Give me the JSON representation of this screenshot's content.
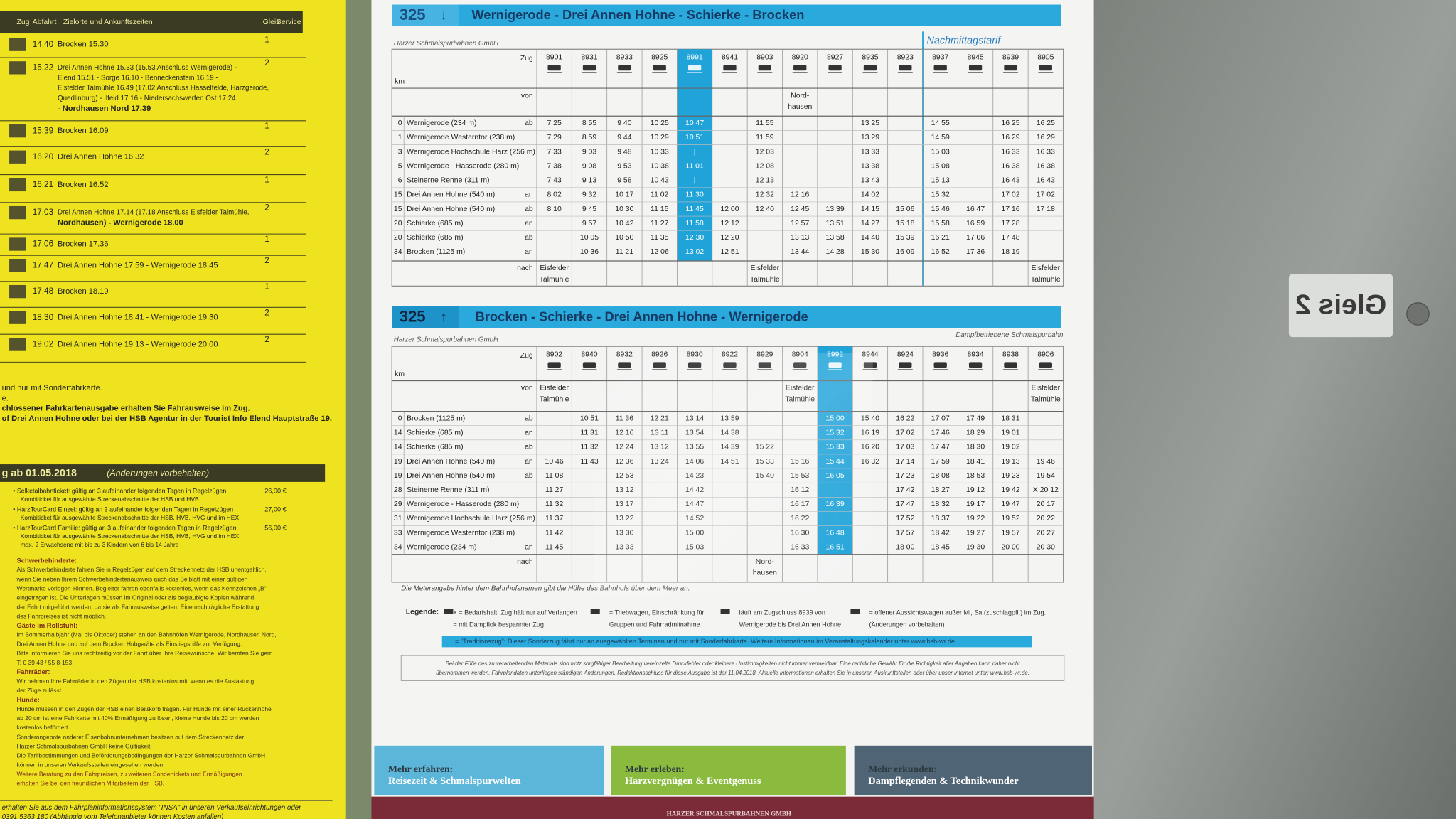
{
  "left_sheet": {
    "header": [
      "Zug",
      "Abfahrt",
      "Zielorte und Ankunftszeiten",
      "Gleis",
      "Service"
    ],
    "departures": [
      {
        "time": "14.40",
        "lines": [
          "Brocken 15.30"
        ],
        "platform": "1"
      },
      {
        "time": "15.22",
        "lines": [
          "Drei Annen Hohne 15.33 (15.53 Anschluss Wernigerode) -",
          "Elend 15.51 - Sorge 16.10 - Benneckenstein 16.19 -",
          "Eisfelder Talmühle 16.49 (17.02 Anschluss Hasselfelde, Harzgerode,",
          "Quedlinburg) - Ilfeld 17.16 - Niedersachswerfen Ost 17.24",
          "- Nordhausen Nord 17.39"
        ],
        "platform": "2"
      },
      {
        "time": "15.39",
        "lines": [
          "Brocken 16.09"
        ],
        "platform": "1"
      },
      {
        "time": "16.20",
        "lines": [
          "Drei Annen Hohne 16.32"
        ],
        "platform": "2"
      },
      {
        "time": "16.21",
        "lines": [
          "Brocken 16.52"
        ],
        "platform": "1"
      },
      {
        "time": "17.03",
        "lines": [
          "Drei Annen Hohne 17.14 (17.18 Anschluss Eisfelder Talmühle,",
          "Nordhausen) - Wernigerode 18.00"
        ],
        "platform": "2"
      },
      {
        "time": "17.06",
        "lines": [
          "Brocken 17.36"
        ],
        "platform": "1"
      },
      {
        "time": "17.47",
        "lines": [
          "Drei Annen Hohne 17.59 - Wernigerode 18.45"
        ],
        "platform": "2"
      },
      {
        "time": "17.48",
        "lines": [
          "Brocken 18.19"
        ],
        "platform": "1"
      },
      {
        "time": "18.30",
        "lines": [
          "Drei Annen Hohne 18.41 - Wernigerode 19.30"
        ],
        "platform": "2"
      },
      {
        "time": "19.02",
        "lines": [
          "Drei Annen Hohne 19.13 - Wernigerode 20.00"
        ],
        "platform": "2"
      }
    ],
    "notes": [
      "und nur mit Sonderfahrkarte.",
      "e.",
      "chlossener Fahrkartenausgabe erhalten Sie Fahrausweise im Zug.",
      "of Drei Annen Hohne oder bei der HSB Agentur in der Tourist Info Elend Hauptstraße 19."
    ],
    "tariff_heading": "g ab 01.05.2018",
    "tariff_note": "(Änderungen vorbehalten)",
    "tickets": [
      {
        "name": "• Selketalbahnticket: gültig an 3 aufeinander folgenden Tagen in Regelzügen",
        "price": "26,00 €",
        "details": [
          "Kombiticket für ausgewählte Streckenabschnitte der HSB und HVB"
        ]
      },
      {
        "name": "• HarzTourCard Einzel: gültig an 3 aufeinander folgenden Tagen in Regelzügen",
        "price": "27,00 €",
        "details": [
          "Kombiticket für ausgewählte Streckenabschnitte der HSB, HVB, HVG und im HEX"
        ]
      },
      {
        "name": "• HarzTourCard Familie: gültig an 3 aufeinander folgenden Tagen in Regelzügen",
        "price": "56,00 €",
        "details": [
          "Kombiticket für ausgewählte Streckenabschnitte der HSB, HVB, HVG und im HEX",
          "max. 2 Erwachsene mit bis zu 3 Kindern von 6 bis 14 Jahre"
        ]
      }
    ],
    "info": [
      "Schwerbehinderte:",
      "Als Schwerbehinderte fahren Sie in Regelzügen auf dem Streckennetz der HSB unentgeltlich,",
      "wenn Sie neben Ihrem Schwerbehindertenausweis auch das Beiblatt mit einer gültigen",
      "Wertmarke vorlegen können. Begleiter fahren ebenfalls kostenlos, wenn das Kennzeichen „B“",
      "eingetragen ist. Die Unterlagen müssen im Original oder als beglaubigte Kopien während",
      "der Fahrt mitgeführt werden, da sie als Fahrausweise gelten. Eine nachträgliche Erstattung",
      "des Fahrpreises ist nicht möglich.",
      "Gäste im Rollstuhl:",
      "Im Sommerhalbjahr (Mai bis Oktober) stehen an den Bahnhöfen Wernigerode, Nordhausen Nord,",
      "Drei Annen Hohne und auf dem Brocken Hubgeräte als Einstiegshilfe zur Verfügung.",
      "Bitte informieren Sie uns rechtzeitig vor der Fahrt über Ihre Reisewünsche. Wir beraten Sie gern",
      "T: 0 39 43 / 55 8-153.",
      "Fahrräder:",
      "Wir nehmen Ihre Fahrräder in den Zügen der HSB kostenlos mit, wenn es die Auslastung",
      "der Züge zulässt.",
      "Hunde:",
      "Hunde müssen in den Zügen der HSB einen Beißkorb tragen. Für Hunde mit einer Rückenhöhe",
      "ab 20 cm ist eine Fahrkarte mit 40% Ermäßigung zu lösen, kleine Hunde bis 20 cm werden",
      "kostenlos befördert.",
      "Sonderangebote anderer Eisenbahnunternehmen besitzen auf dem Streckennetz der",
      "Harzer Schmalspurbahnen GmbH keine Gültigkeit.",
      "Die Tarifbestimmungen und Beförderungsbedingungen der Harzer Schmalspurbahnen GmbH",
      "können in unseren Verkaufsstellen eingesehen werden.",
      "Weitere Beratung zu den Fahrpreisen, zu weiteren Sondertickets und Ermäßigungen",
      "erhalten Sie bei den freundlichen Mitarbeitern der HSB."
    ],
    "bottom": [
      "erhalten Sie aus dem Fahrplaninformationssystem \"INSA\" in unseren Verkaufseinrichtungen oder",
      "0391 5363 180 (Abhängig vom Telefonanbieter können Kosten anfallen)"
    ]
  },
  "timetables": [
    {
      "number": "325",
      "arrow": "↓",
      "route": "Wernigerode - Drei Annen Hohne - Schierke - Brocken",
      "operator": "Harzer Schmalspurbahnen GmbH",
      "note": "Nachmittagstarif",
      "labels": {
        "train": "Zug",
        "km": "km",
        "from": "von",
        "to": "nach"
      },
      "trains": [
        "8901",
        "8931",
        "8933",
        "8925",
        "8991",
        "8941",
        "8903",
        "8920",
        "8927",
        "8935",
        "8923",
        "8937",
        "8945",
        "8939",
        "8905"
      ],
      "from": [
        null,
        null,
        null,
        null,
        null,
        null,
        null,
        [
          "Nord-",
          "hausen"
        ],
        null,
        null,
        null,
        null,
        null,
        null,
        null
      ],
      "rows": [
        {
          "km": "0",
          "station": "Wernigerode (234 m)",
          "dir": "ab",
          "times": [
            "7 25",
            "8 55",
            "9 40",
            "10 25",
            "10 47",
            null,
            "11 55",
            null,
            null,
            "13 25",
            null,
            "14 55",
            null,
            "16 25",
            "16 25"
          ]
        },
        {
          "km": "1",
          "station": "Wernigerode Westerntor (238 m)",
          "dir": null,
          "times": [
            "7 29",
            "8 59",
            "9 44",
            "10 29",
            "10 51",
            null,
            "11 59",
            null,
            null,
            "13 29",
            null,
            "14 59",
            null,
            "16 29",
            "16 29"
          ]
        },
        {
          "km": "3",
          "station": "Wernigerode Hochschule Harz (256 m)",
          "dir": null,
          "times": [
            "7 33",
            "9 03",
            "9 48",
            "10 33",
            "|",
            null,
            "12 03",
            null,
            null,
            "13 33",
            null,
            "15 03",
            null,
            "16 33",
            "16 33"
          ]
        },
        {
          "km": "5",
          "station": "Wernigerode - Hasserode (280 m)",
          "dir": null,
          "times": [
            "7 38",
            "9 08",
            "9 53",
            "10 38",
            "11 01",
            null,
            "12 08",
            null,
            null,
            "13 38",
            null,
            "15 08",
            null,
            "16 38",
            "16 38"
          ]
        },
        {
          "km": "6",
          "station": "Steinerne Renne (311 m)",
          "dir": null,
          "times": [
            "7 43",
            "9 13",
            "9 58",
            "10 43",
            "|",
            null,
            "12 13",
            null,
            null,
            "13 43",
            null,
            "15 13",
            null,
            "16 43",
            "16 43"
          ]
        },
        {
          "km": "15",
          "station": "Drei Annen Hohne (540 m)",
          "dir": "an",
          "times": [
            "8 02",
            "9 32",
            "10 17",
            "11 02",
            "11 30",
            null,
            "12 32",
            "12 16",
            null,
            "14 02",
            null,
            "15 32",
            null,
            "17 02",
            "17 02"
          ]
        },
        {
          "km": "15",
          "station": "Drei Annen Hohne (540 m)",
          "dir": "ab",
          "times": [
            "8 10",
            "9 45",
            "10 30",
            "11 15",
            "11 45",
            "12 00",
            "12 40",
            "12 45",
            "13 39",
            "14 15",
            "15 06",
            "15 46",
            "16 47",
            "17 16",
            "17 18"
          ]
        },
        {
          "km": "20",
          "station": "Schierke (685 m)",
          "dir": "an",
          "times": [
            null,
            "9 57",
            "10 42",
            "11 27",
            "11 58",
            "12 12",
            null,
            "12 57",
            "13 51",
            "14 27",
            "15 18",
            "15 58",
            "16 59",
            "17 28",
            null
          ]
        },
        {
          "km": "20",
          "station": "Schierke (685 m)",
          "dir": "ab",
          "times": [
            null,
            "10 05",
            "10 50",
            "11 35",
            "12 30",
            "12 20",
            null,
            "13 13",
            "13 58",
            "14 40",
            "15 39",
            "16 21",
            "17 06",
            "17 48",
            null
          ]
        },
        {
          "km": "34",
          "station": "Brocken (1125 m)",
          "dir": "an",
          "times": [
            null,
            "10 36",
            "11 21",
            "12 06",
            "13 02",
            "12 51",
            null,
            "13 44",
            "14 28",
            "15 30",
            "16 09",
            "16 52",
            "17 36",
            "18 19",
            null
          ]
        }
      ],
      "to": [
        [
          "Eisfelder",
          "Talmühle"
        ],
        null,
        null,
        null,
        null,
        null,
        [
          "Eisfelder",
          "Talmühle"
        ],
        null,
        null,
        null,
        null,
        null,
        null,
        null,
        [
          "Eisfelder",
          "Talmühle"
        ]
      ]
    },
    {
      "number": "325",
      "arrow": "↑",
      "route": "Brocken - Schierke - Drei Annen Hohne - Wernigerode",
      "operator": "Harzer Schmalspurbahnen GmbH",
      "note": "Dampfbetriebene Schmalspurbahn",
      "labels": {
        "train": "Zug",
        "km": "km",
        "from": "von",
        "to": "nach"
      },
      "trains": [
        "8902",
        "8940",
        "8932",
        "8926",
        "8930",
        "8922",
        "8929",
        "8904",
        "8992",
        "8944",
        "8924",
        "8936",
        "8934",
        "8938",
        "8906"
      ],
      "from": [
        [
          "Eisfelder",
          "Talmühle"
        ],
        null,
        null,
        null,
        null,
        null,
        null,
        [
          "Eisfelder",
          "Talmühle"
        ],
        null,
        null,
        null,
        null,
        null,
        null,
        [
          "Eisfelder",
          "Talmühle"
        ]
      ],
      "rows": [
        {
          "km": "0",
          "station": "Brocken (1125 m)",
          "dir": "ab",
          "times": [
            null,
            "10 51",
            "11 36",
            "12 21",
            "13 14",
            "13 59",
            null,
            null,
            "15 00",
            "15 40",
            "16 22",
            "17 07",
            "17 49",
            "18 31",
            null
          ]
        },
        {
          "km": "14",
          "station": "Schierke (685 m)",
          "dir": "an",
          "times": [
            null,
            "11 31",
            "12 16",
            "13 11",
            "13 54",
            "14 38",
            null,
            null,
            "15 32",
            "16 19",
            "17 02",
            "17 46",
            "18 29",
            "19 01",
            null
          ]
        },
        {
          "km": "14",
          "station": "Schierke (685 m)",
          "dir": "ab",
          "times": [
            null,
            "11 32",
            "12 24",
            "13 12",
            "13 55",
            "14 39",
            "15 22",
            null,
            "15 33",
            "16 20",
            "17 03",
            "17 47",
            "18 30",
            "19 02",
            null
          ]
        },
        {
          "km": "19",
          "station": "Drei Annen Hohne (540 m)",
          "dir": "an",
          "times": [
            "10 46",
            "11 43",
            "12 36",
            "13 24",
            "14 06",
            "14 51",
            "15 33",
            "15 16",
            "15 44",
            "16 32",
            "17 14",
            "17 59",
            "18 41",
            "19 13",
            "19 46"
          ]
        },
        {
          "km": "19",
          "station": "Drei Annen Hohne (540 m)",
          "dir": "ab",
          "times": [
            "11 08",
            null,
            "12 53",
            null,
            "14 23",
            null,
            "15 40",
            "15 53",
            "16 05",
            null,
            "17 23",
            "18 08",
            "18 53",
            "19 23",
            "19 54"
          ]
        },
        {
          "km": "28",
          "station": "Steinerne Renne (311 m)",
          "dir": null,
          "times": [
            "11 27",
            null,
            "13 12",
            null,
            "14 42",
            null,
            null,
            "16 12",
            "|",
            null,
            "17 42",
            "18 27",
            "19 12",
            "19 42",
            "X 20 12"
          ]
        },
        {
          "km": "29",
          "station": "Wernigerode - Hasserode (280 m)",
          "dir": null,
          "times": [
            "11 32",
            null,
            "13 17",
            null,
            "14 47",
            null,
            null,
            "16 17",
            "16 39",
            null,
            "17 47",
            "18 32",
            "19 17",
            "19 47",
            "20 17"
          ]
        },
        {
          "km": "31",
          "station": "Wernigerode Hochschule Harz (256 m)",
          "dir": null,
          "times": [
            "11 37",
            null,
            "13 22",
            null,
            "14 52",
            null,
            null,
            "16 22",
            "|",
            null,
            "17 52",
            "18 37",
            "19 22",
            "19 52",
            "20 22"
          ]
        },
        {
          "km": "33",
          "station": "Wernigerode Westerntor (238 m)",
          "dir": null,
          "times": [
            "11 42",
            null,
            "13 30",
            null,
            "15 00",
            null,
            null,
            "16 30",
            "16 48",
            null,
            "17 57",
            "18 42",
            "19 27",
            "19 57",
            "20 27"
          ]
        },
        {
          "km": "34",
          "station": "Wernigerode (234 m)",
          "dir": "an",
          "times": [
            "11 45",
            null,
            "13 33",
            null,
            "15 03",
            null,
            null,
            "16 33",
            "16 51",
            null,
            "18 00",
            "18 45",
            "19 30",
            "20 00",
            "20 30"
          ]
        }
      ],
      "to": [
        null,
        null,
        null,
        null,
        null,
        null,
        [
          "Nord-",
          "hausen"
        ],
        null,
        null,
        null,
        null,
        null,
        null,
        null,
        null
      ]
    }
  ],
  "footnote": "Die Meterangabe hinter dem Bahnhofsnamen gibt die Höhe des Bahnhofs über dem Meer an.",
  "legend": {
    "title": "Legende:",
    "items": [
      [
        "× = Bedarfshalt, Zug hält nur auf Verlangen",
        "= mit Dampflok bespannter Zug"
      ],
      [
        "= Triebwagen, Einschränkung für",
        "Gruppen und Fahrradmitnahme"
      ],
      [
        "läuft am Zugschluss 8939 von",
        "Wernigerode bis Drei Annen Hohne"
      ],
      [
        "= offener Aussichtswagen außer Mi, Sa (zuschlagpfl.) im Zug.",
        "(Änderungen vorbehalten)"
      ]
    ],
    "special": "= \"Traditionszug\": Dieser Sonderzug fährt nur an ausgewählten Terminen und nur mit Sonderfahrkarte. Weitere Informationen im Veranstaltungskalender unter www.hsb-wr.de."
  },
  "disclaimer": [
    "Bei der Fülle des zu verarbeitenden Materials sind trotz sorgfältiger Bearbeitung vereinzelte Druckfehler oder kleinere Unstimmigkeiten nicht immer vermeidbar. Eine rechtliche Gewähr für die Richtigkeit aller Angaben kann daher nicht",
    "übernommen werden. Fahrplandaten unterliegen ständigen Änderungen. Redaktionsschluss für diese Ausgabe ist der 11.04.2018. Aktuelle Informationen erhalten Sie in unseren Auskunftstellen oder über unser Internet unter: www.hsb-wr.de."
  ],
  "banners": [
    {
      "label": "Mehr erfahren:",
      "text": "Reisezeit & Schmalspurwelten"
    },
    {
      "label": "Mehr erleben:",
      "text": "Harzvergnügen & Eventgenuss"
    },
    {
      "label": "Mehr erkunden:",
      "text": "Dampflegenden & Technikwunder"
    }
  ],
  "footer": "HARZER SCHMALSPURBAHNEN GMBH",
  "sign": "Gleis 2"
}
